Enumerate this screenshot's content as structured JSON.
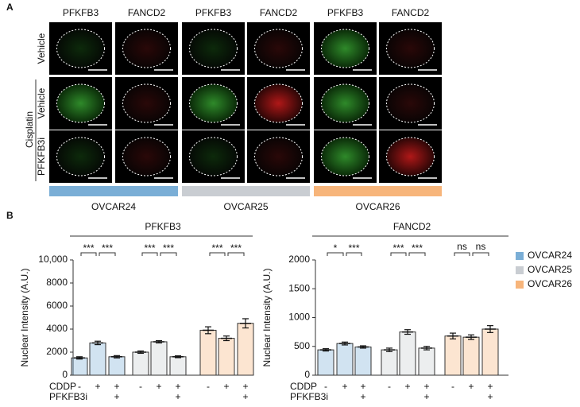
{
  "panel_a": {
    "label": "A",
    "columns": [
      "PFKFB3",
      "FANCD2",
      "PFKFB3",
      "FANCD2",
      "PFKFB3",
      "FANCD2"
    ],
    "rows": [
      "Vehicle",
      "Vehicle",
      "PFKFB3i"
    ],
    "group_label": "Cisplatin",
    "cell_lines": [
      "OVCAR24",
      "OVCAR25",
      "OVCAR26"
    ]
  },
  "panel_b_label": "B",
  "chart_data": [
    {
      "type": "bar",
      "title": "PFKFB3",
      "y_label": "Nuclear Intensity (A.U.)",
      "ylim": [
        0,
        10000
      ],
      "yticks": [
        0,
        2000,
        4000,
        6000,
        8000,
        {
          "value": 10000,
          "label": "10,000"
        }
      ],
      "series": [
        {
          "name": "OVCAR24",
          "color": "#7aaed6",
          "values": [
            1500,
            2800,
            1600
          ],
          "errors": [
            100,
            150,
            100
          ]
        },
        {
          "name": "OVCAR25",
          "color": "#c9cdd2",
          "values": [
            2000,
            2900,
            1600
          ],
          "errors": [
            100,
            100,
            80
          ]
        },
        {
          "name": "OVCAR26",
          "color": "#f7b57b",
          "values": [
            3900,
            3200,
            4500
          ],
          "errors": [
            300,
            200,
            400
          ]
        }
      ],
      "significance": [
        [
          "***",
          "***"
        ],
        [
          "***",
          "***"
        ],
        [
          "***",
          "***"
        ]
      ],
      "treatments": [
        {
          "name": "CDDP",
          "labels": [
            "-",
            "+",
            "+"
          ]
        },
        {
          "name": "PFKFB3i",
          "labels": [
            null,
            null,
            "+"
          ]
        }
      ]
    },
    {
      "type": "bar",
      "title": "FANCD2",
      "y_label": "Nuclear Intensity (A.U.)",
      "ylim": [
        0,
        2000
      ],
      "yticks": [
        0,
        500,
        1000,
        1500,
        2000
      ],
      "series": [
        {
          "name": "OVCAR24",
          "color": "#7aaed6",
          "values": [
            440,
            550,
            490
          ],
          "errors": [
            20,
            25,
            20
          ]
        },
        {
          "name": "OVCAR25",
          "color": "#c9cdd2",
          "values": [
            440,
            750,
            470
          ],
          "errors": [
            30,
            40,
            30
          ]
        },
        {
          "name": "OVCAR26",
          "color": "#f7b57b",
          "values": [
            680,
            660,
            800
          ],
          "errors": [
            50,
            40,
            60
          ]
        }
      ],
      "significance": [
        [
          "*",
          "***"
        ],
        [
          "***",
          "***"
        ],
        [
          "ns",
          "ns"
        ]
      ],
      "treatments": [
        {
          "name": "CDDP",
          "labels": [
            "-",
            "+",
            "+"
          ]
        },
        {
          "name": "PFKFB3i",
          "labels": [
            null,
            null,
            "+"
          ]
        }
      ]
    }
  ]
}
